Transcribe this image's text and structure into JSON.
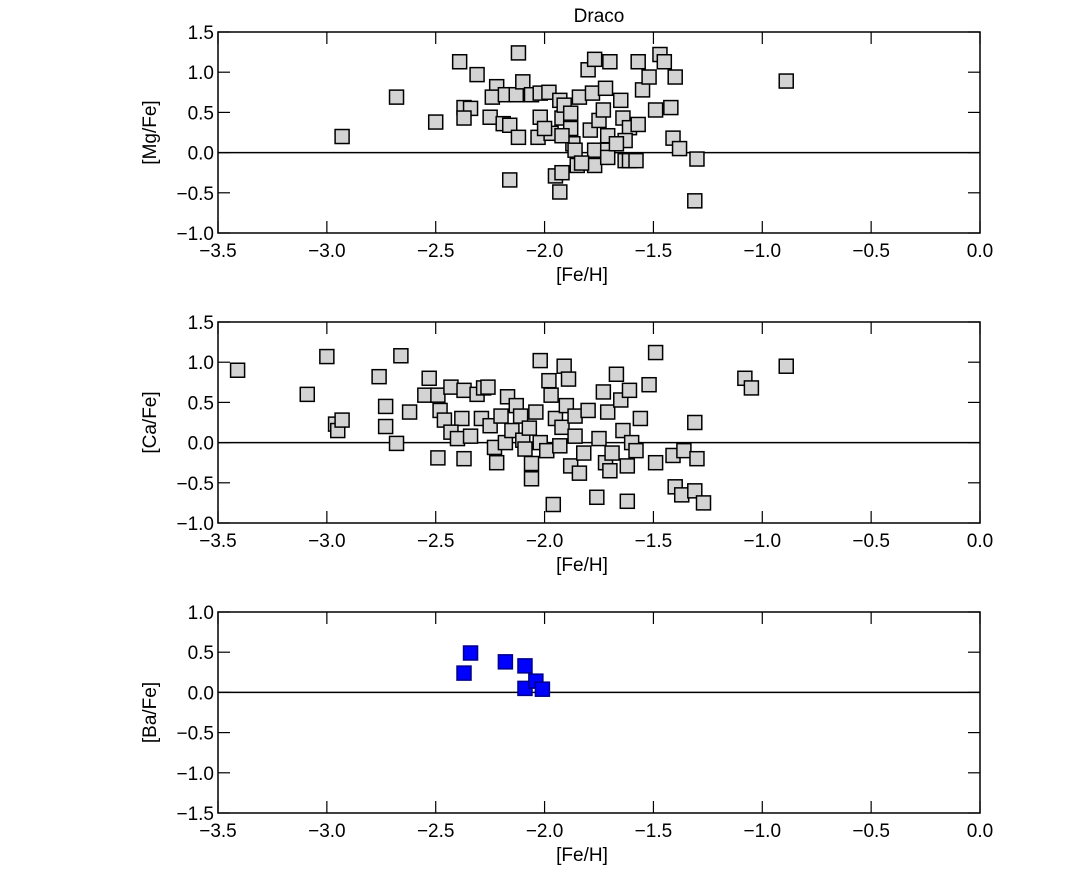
{
  "chart_data": [
    {
      "type": "scatter",
      "title": "Draco",
      "x_label": "[Fe/H]",
      "y_label": "[Mg/Fe]",
      "marker": "square",
      "color": "#d3d3d3",
      "edge_color": "#000000",
      "reference_line": 0,
      "xlim": [
        -3.5,
        0
      ],
      "ylim": [
        -1.0,
        1.5
      ],
      "xticks": [
        {
          "value": -3.5,
          "label": "−3.5"
        },
        {
          "value": -3.0,
          "label": "−3.0"
        },
        {
          "value": -2.5,
          "label": "−2.5"
        },
        {
          "value": -2.0,
          "label": "−2.0"
        },
        {
          "value": -1.5,
          "label": "−1.5"
        },
        {
          "value": -1.0,
          "label": "−1.0"
        },
        {
          "value": -0.5,
          "label": "−0.5"
        },
        {
          "value": 0,
          "label": "0.0"
        }
      ],
      "yticks": [
        {
          "value": -1.0,
          "label": "−1.0"
        },
        {
          "value": -0.5,
          "label": "−0.5"
        },
        {
          "value": 0,
          "label": "0.0"
        },
        {
          "value": 0.5,
          "label": "0.5"
        },
        {
          "value": 1.0,
          "label": "1.0"
        },
        {
          "value": 1.5,
          "label": "1.5"
        }
      ],
      "x": [
        -2.93,
        -2.68,
        -2.5,
        -2.39,
        -2.31,
        -2.37,
        -2.34,
        -2.37,
        -2.25,
        -2.22,
        -2.24,
        -2.19,
        -2.16,
        -2.18,
        -2.13,
        -2.12,
        -2.1,
        -2.12,
        -2.16,
        -2.06,
        -2.02,
        -1.98,
        -2.03,
        -2.02,
        -1.97,
        -1.95,
        -1.92,
        -1.93,
        -1.93,
        -1.92,
        -1.91,
        -1.88,
        -1.88,
        -1.87,
        -1.86,
        -1.85,
        -1.84,
        -1.8,
        -1.77,
        -1.78,
        -1.79,
        -1.77,
        -1.77,
        -1.75,
        -1.73,
        -1.72,
        -1.71,
        -1.7,
        -1.71,
        -1.71,
        -1.65,
        -1.64,
        -1.63,
        -1.61,
        -1.61,
        -1.58,
        -1.57,
        -1.57,
        -1.55,
        -1.52,
        -1.49,
        -1.47,
        -1.45,
        -1.42,
        -1.4,
        -1.41,
        -1.38,
        -1.3,
        -1.31,
        -0.89,
        -1.63,
        -1.67,
        -1.83,
        -1.92,
        -2.0
      ],
      "values": [
        0.2,
        0.69,
        0.38,
        1.13,
        0.97,
        0.56,
        0.55,
        0.43,
        0.44,
        0.82,
        0.69,
        0.36,
        0.34,
        0.72,
        0.72,
        1.24,
        0.88,
        0.19,
        -0.34,
        0.72,
        0.74,
        0.75,
        0.19,
        0.44,
        0.24,
        -0.29,
        -0.25,
        -0.49,
        0.65,
        0.43,
        0.59,
        0.49,
        0.3,
        0.11,
        0.03,
        -0.16,
        0.69,
        1.03,
        1.16,
        0.74,
        0.28,
        0.03,
        -0.16,
        0.4,
        0.53,
        0.8,
        0.21,
        1.13,
        0.03,
        -0.06,
        0.65,
        0.43,
        -0.1,
        0.31,
        -0.1,
        -0.1,
        0.35,
        1.13,
        0.78,
        0.94,
        0.53,
        1.22,
        1.13,
        0.56,
        0.94,
        0.18,
        0.05,
        -0.08,
        -0.6,
        0.89,
        0.15,
        0.11,
        -0.13,
        0.21,
        0.3
      ]
    },
    {
      "type": "scatter",
      "x_label": "[Fe/H]",
      "y_label": "[Ca/Fe]",
      "marker": "square",
      "color": "#d3d3d3",
      "edge_color": "#000000",
      "reference_line": 0,
      "xlim": [
        -3.5,
        0
      ],
      "ylim": [
        -1.0,
        1.5
      ],
      "xticks": [
        {
          "value": -3.5,
          "label": "−3.5"
        },
        {
          "value": -3.0,
          "label": "−3.0"
        },
        {
          "value": -2.5,
          "label": "−2.5"
        },
        {
          "value": -2.0,
          "label": "−2.0"
        },
        {
          "value": -1.5,
          "label": "−1.5"
        },
        {
          "value": -1.0,
          "label": "−1.0"
        },
        {
          "value": -0.5,
          "label": "−0.5"
        },
        {
          "value": 0,
          "label": "0.0"
        }
      ],
      "yticks": [
        {
          "value": -1.0,
          "label": "−1.0"
        },
        {
          "value": -0.5,
          "label": "−0.5"
        },
        {
          "value": 0,
          "label": "0.0"
        },
        {
          "value": 0.5,
          "label": "0.5"
        },
        {
          "value": 1.0,
          "label": "1.0"
        },
        {
          "value": 1.5,
          "label": "1.5"
        }
      ],
      "x": [
        -3.41,
        -3.09,
        -3.0,
        -2.96,
        -2.95,
        -2.93,
        -2.76,
        -2.73,
        -2.73,
        -2.68,
        -2.66,
        -2.62,
        -2.53,
        -2.55,
        -2.49,
        -2.49,
        -2.48,
        -2.43,
        -2.38,
        -2.37,
        -2.37,
        -2.46,
        -2.43,
        -2.4,
        -2.34,
        -2.31,
        -2.28,
        -2.26,
        -2.29,
        -2.25,
        -2.23,
        -2.22,
        -2.2,
        -2.18,
        -2.17,
        -2.15,
        -2.13,
        -2.11,
        -2.1,
        -2.09,
        -2.07,
        -2.06,
        -2.06,
        -2.04,
        -2.02,
        -2.02,
        -1.99,
        -1.98,
        -1.97,
        -1.96,
        -1.95,
        -1.93,
        -1.92,
        -1.91,
        -1.9,
        -1.89,
        -1.88,
        -1.86,
        -1.86,
        -1.84,
        -1.82,
        -1.8,
        -1.76,
        -1.75,
        -1.73,
        -1.72,
        -1.71,
        -1.7,
        -1.69,
        -1.67,
        -1.65,
        -1.64,
        -1.62,
        -1.62,
        -1.61,
        -1.6,
        -1.58,
        -1.56,
        -1.52,
        -1.49,
        -1.49,
        -1.41,
        -1.4,
        -1.37,
        -1.36,
        -1.31,
        -1.31,
        -1.3,
        -1.27,
        -1.08,
        -1.05,
        -0.89
      ],
      "values": [
        0.9,
        0.6,
        1.07,
        0.23,
        0.15,
        0.28,
        0.82,
        0.45,
        0.2,
        -0.01,
        1.08,
        0.38,
        0.8,
        0.59,
        -0.19,
        0.59,
        0.4,
        0.69,
        0.3,
        0.65,
        -0.2,
        0.28,
        0.13,
        0.05,
        0.08,
        0.6,
        0.68,
        0.69,
        0.3,
        0.21,
        -0.06,
        -0.25,
        0.33,
        0.0,
        0.57,
        0.15,
        0.46,
        0.33,
        0.03,
        -0.08,
        0.18,
        -0.26,
        -0.45,
        0.38,
        1.02,
        0.0,
        -0.1,
        0.77,
        0.59,
        -0.77,
        0.3,
        -0.04,
        0.19,
        0.95,
        0.46,
        0.79,
        -0.29,
        0.33,
        0.08,
        -0.38,
        -0.13,
        0.4,
        -0.68,
        0.05,
        0.63,
        -0.25,
        0.38,
        -0.35,
        -0.13,
        0.85,
        0.53,
        0.15,
        -0.73,
        -0.29,
        0.65,
        0.0,
        -0.1,
        0.3,
        0.72,
        1.12,
        -0.25,
        -0.16,
        -0.55,
        -0.65,
        -0.1,
        -0.6,
        0.25,
        -0.2,
        -0.75,
        0.8,
        0.68,
        0.95
      ]
    },
    {
      "type": "scatter",
      "x_label": "[Fe/H]",
      "y_label": "[Ba/Fe]",
      "marker": "square",
      "color": "#0000ff",
      "edge_color": "#00008b",
      "reference_line": 0,
      "xlim": [
        -3.5,
        0
      ],
      "ylim": [
        -1.5,
        1.0
      ],
      "xticks": [
        {
          "value": -3.5,
          "label": "−3.5"
        },
        {
          "value": -3.0,
          "label": "−3.0"
        },
        {
          "value": -2.5,
          "label": "−2.5"
        },
        {
          "value": -2.0,
          "label": "−2.0"
        },
        {
          "value": -1.5,
          "label": "−1.5"
        },
        {
          "value": -1.0,
          "label": "−1.0"
        },
        {
          "value": -0.5,
          "label": "−0.5"
        },
        {
          "value": 0,
          "label": "0.0"
        }
      ],
      "yticks": [
        {
          "value": -1.5,
          "label": "−1.5"
        },
        {
          "value": -1.0,
          "label": "−1.0"
        },
        {
          "value": -0.5,
          "label": "−0.5"
        },
        {
          "value": 0,
          "label": "0.0"
        },
        {
          "value": 0.5,
          "label": "0.5"
        },
        {
          "value": 1.0,
          "label": "1.0"
        }
      ],
      "x": [
        -2.37,
        -2.34,
        -2.18,
        -2.09,
        -2.09,
        -2.04,
        -2.01
      ],
      "values": [
        0.24,
        0.49,
        0.38,
        0.33,
        0.05,
        0.14,
        0.04
      ]
    }
  ]
}
